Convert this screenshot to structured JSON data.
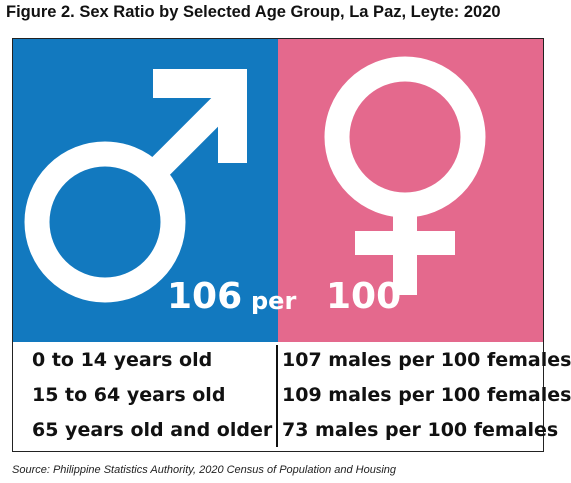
{
  "title": "Figure 2. Sex Ratio by Selected Age Group, La Paz, Leyte: 2020",
  "headline": {
    "males": "106",
    "per": "per",
    "females": "100"
  },
  "icons": {
    "male": "male-symbol-icon",
    "female": "female-symbol-icon"
  },
  "colors": {
    "male_panel": "#1279bf",
    "female_panel": "#e4698d"
  },
  "table": {
    "rows": [
      {
        "age_group": "0 to 14 years old",
        "ratio": "107 males per 100 females"
      },
      {
        "age_group": "15 to 64 years old",
        "ratio": "109 males per 100 females"
      },
      {
        "age_group": "65 years old and older",
        "ratio": "73 males per 100 females"
      }
    ]
  },
  "source": "Source: Philippine Statistics Authority, 2020 Census of Population and Housing"
}
